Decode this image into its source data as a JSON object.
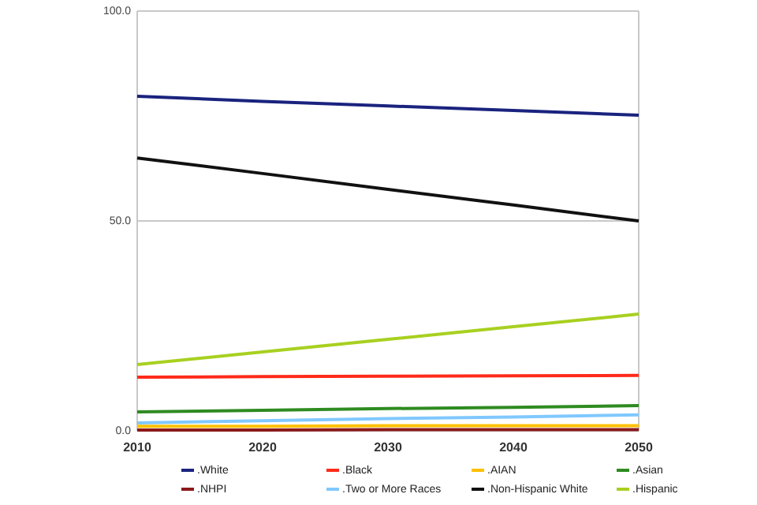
{
  "chart_data": {
    "type": "line",
    "x": [
      2010,
      2020,
      2030,
      2040,
      2050
    ],
    "xlim": [
      2010,
      2050
    ],
    "xticks": [
      2010,
      2020,
      2030,
      2040,
      2050
    ],
    "ylim": [
      0,
      100
    ],
    "yticks": [
      {
        "value": 0,
        "label": "0.0"
      },
      {
        "value": 50,
        "label": "50.0"
      },
      {
        "value": 100,
        "label": "100.0"
      }
    ],
    "grid": "y",
    "legend": "bottom",
    "marker": "none",
    "series": [
      {
        "name": ".White",
        "color": "#1a237e",
        "values": [
          79.7,
          78.5,
          77.4,
          76.3,
          75.2
        ]
      },
      {
        "name": ".Black",
        "color": "#ff2a1a",
        "values": [
          12.8,
          12.9,
          13.0,
          13.1,
          13.2
        ]
      },
      {
        "name": ".AIAN",
        "color": "#ffc000",
        "values": [
          1.1,
          1.1,
          1.2,
          1.2,
          1.2
        ]
      },
      {
        "name": ".Asian",
        "color": "#2e8b20",
        "values": [
          4.5,
          4.9,
          5.3,
          5.6,
          6.0
        ]
      },
      {
        "name": ".NHPI",
        "color": "#8b1a1a",
        "values": [
          0.2,
          0.2,
          0.3,
          0.3,
          0.3
        ]
      },
      {
        "name": ".Two or More Races",
        "color": "#80c8ff",
        "values": [
          1.9,
          2.4,
          2.9,
          3.3,
          3.8
        ]
      },
      {
        "name": ".Non-Hispanic White",
        "color": "#111111",
        "values": [
          65.0,
          61.3,
          57.5,
          53.8,
          50.0
        ]
      },
      {
        "name": ".Hispanic",
        "color": "#a8d020",
        "values": [
          15.8,
          18.8,
          21.8,
          24.8,
          27.8
        ]
      }
    ]
  }
}
